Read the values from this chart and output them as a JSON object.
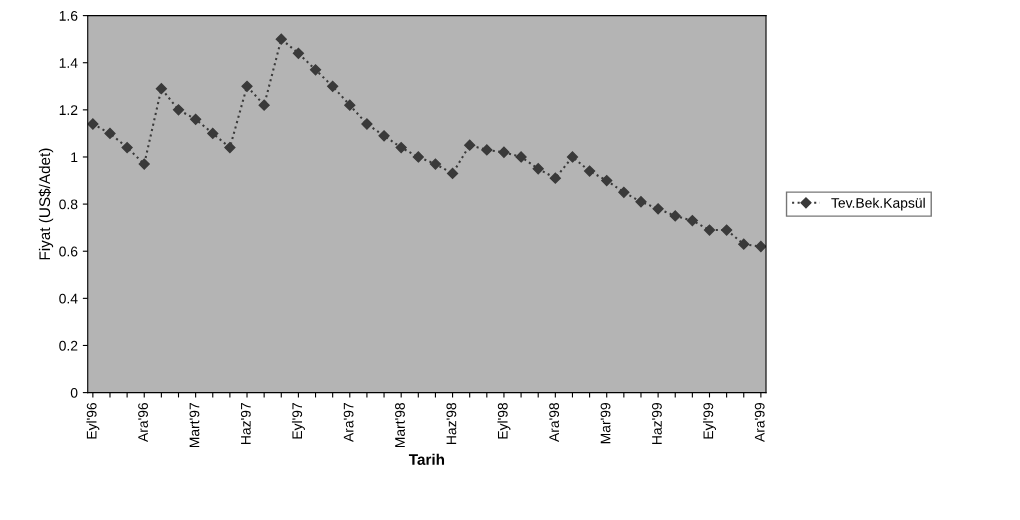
{
  "chart_data": {
    "type": "line",
    "xlabel": "Tarih",
    "ylabel": "Fiyat (US$/Adet)",
    "categories": [
      "Eyl'96",
      null,
      null,
      "Ara'96",
      null,
      null,
      "Mart'97",
      null,
      null,
      "Haz'97",
      null,
      null,
      "Eyl'97",
      null,
      null,
      "Ara'97",
      null,
      null,
      "Mart'98",
      null,
      null,
      "Haz'98",
      null,
      null,
      "Eyl'98",
      null,
      null,
      "Ara'98",
      null,
      null,
      "Mar'99",
      null,
      null,
      "Haz'99",
      null,
      null,
      "Eyl'99",
      null,
      null,
      "Ara'99"
    ],
    "series": [
      {
        "name": "Tev.Bek.Kapsül",
        "color": "#3a3a3a",
        "values": [
          1.14,
          1.1,
          1.04,
          0.97,
          1.29,
          1.2,
          1.16,
          1.1,
          1.04,
          1.3,
          1.22,
          1.5,
          1.44,
          1.37,
          1.3,
          1.22,
          1.14,
          1.09,
          1.04,
          1.0,
          0.97,
          0.93,
          1.05,
          1.03,
          1.02,
          1.0,
          0.95,
          0.91,
          1.0,
          0.94,
          0.9,
          0.85,
          0.81,
          0.78,
          0.75,
          0.73,
          0.69,
          0.69,
          0.63,
          0.62
        ]
      }
    ],
    "ylim": [
      0,
      1.6
    ],
    "yticks": [
      0,
      0.2,
      0.4,
      0.6,
      0.8,
      1,
      1.2,
      1.4,
      1.6
    ],
    "legend": "right",
    "marker": "diamond",
    "line_style": "dotted"
  }
}
